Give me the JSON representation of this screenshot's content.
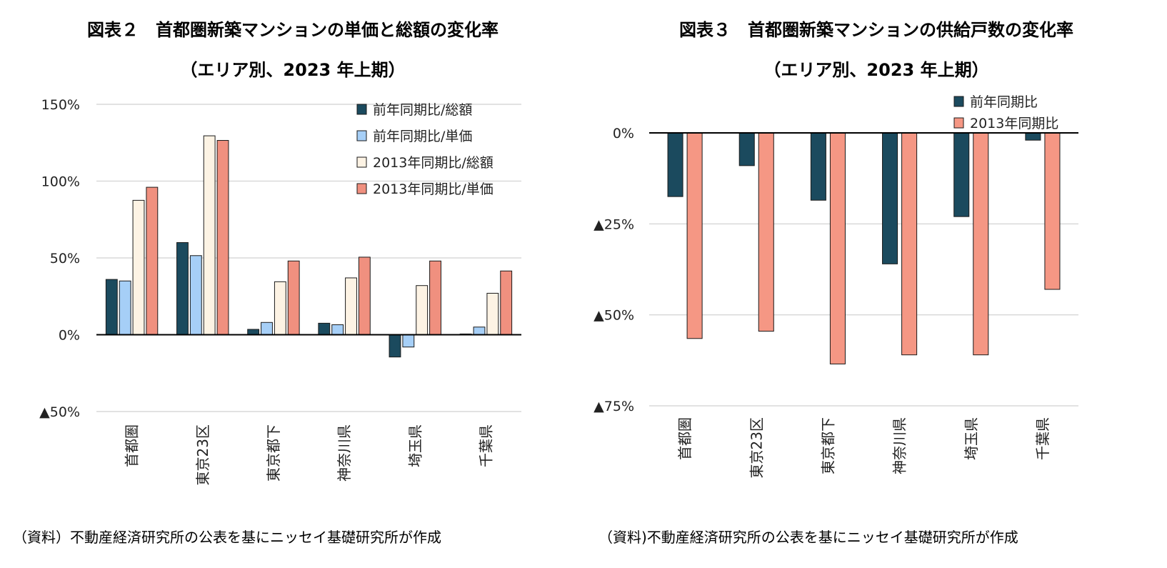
{
  "charts": [
    {
      "title": "図表２　首都圏新築マンションの単価と総額の変化率",
      "subtitle": "（エリア別、2023 年上期）",
      "source": "（資料）不動産経済研究所の公表を基にニッセイ基礎研究所が作成"
    },
    {
      "title": "図表３　首都圏新築マンションの供給戸数の変化率",
      "subtitle": "（エリア別、2023 年上期）",
      "source": "（資料)不動産経済研究所の公表を基にニッセイ基礎研究所が作成"
    }
  ],
  "chart_data": [
    {
      "type": "bar",
      "categories": [
        "首都圏",
        "東京23区",
        "東京都下",
        "神奈川県",
        "埼玉県",
        "千葉県"
      ],
      "series": [
        {
          "name": "前年同期比/総額",
          "color": "#1b4a5e",
          "values": [
            36,
            60,
            3.5,
            7.5,
            -14.5,
            0.5
          ]
        },
        {
          "name": "前年同期比/単価",
          "color": "#a6cff7",
          "values": [
            35,
            51.5,
            8,
            6.5,
            -8,
            5
          ]
        },
        {
          "name": "2013年同期比/総額",
          "color": "#fdf3e4",
          "values": [
            87.5,
            129.5,
            34.5,
            37,
            32,
            27
          ]
        },
        {
          "name": "2013年同期比/単価",
          "color": "#f0907f",
          "values": [
            96,
            126.5,
            48,
            50.5,
            48,
            41.5
          ]
        }
      ],
      "ylim": [
        -50,
        150
      ],
      "yticks": [
        -50,
        0,
        50,
        100,
        150
      ],
      "ytick_labels": [
        "▲50%",
        "0%",
        "50%",
        "100%",
        "150%"
      ],
      "grid": true,
      "legend_position": "top-right"
    },
    {
      "type": "bar",
      "categories": [
        "首都圏",
        "東京23区",
        "東京都下",
        "神奈川県",
        "埼玉県",
        "千葉県"
      ],
      "series": [
        {
          "name": "前年同期比",
          "color": "#1b4a5e",
          "values": [
            -17.5,
            -9,
            -18.5,
            -36,
            -23,
            -2
          ]
        },
        {
          "name": "2013年同期比",
          "color": "#f59784",
          "values": [
            -56.5,
            -54.5,
            -63.5,
            -61,
            -61,
            -43
          ]
        }
      ],
      "ylim": [
        -75,
        0
      ],
      "yticks": [
        -75,
        -50,
        -25,
        0
      ],
      "ytick_labels": [
        "▲75%",
        "▲50%",
        "▲25%",
        "0%"
      ],
      "grid": true,
      "legend_position": "top-right"
    }
  ]
}
